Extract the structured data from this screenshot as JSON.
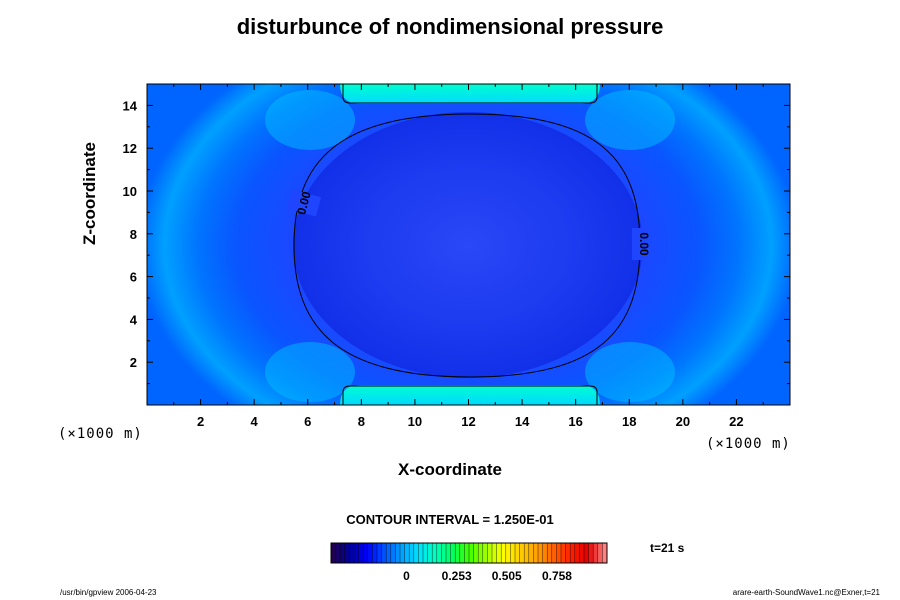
{
  "chart_data": {
    "type": "heatmap",
    "title": "disturbunce of nondimensional pressure",
    "xlabel": "X-coordinate",
    "ylabel": "Z-coordinate",
    "x_unit": "(×1000 m)",
    "z_unit": "(×1000 m)",
    "xlim": [
      0,
      24
    ],
    "ylim": [
      0,
      15
    ],
    "x_ticks": [
      "2",
      "4",
      "6",
      "8",
      "10",
      "12",
      "14",
      "16",
      "18",
      "20",
      "22"
    ],
    "y_ticks": [
      "2",
      "4",
      "6",
      "8",
      "10",
      "12",
      "14"
    ],
    "contour_level": 0.0,
    "contour_labels": [
      "0.00",
      "0.00"
    ],
    "contour_interval": "CONTOUR INTERVAL = 1.250E-01",
    "colorbar_ticks": [
      "0",
      "0.253",
      "0.505",
      "0.758"
    ],
    "colorbar_tick_values": [
      0,
      0.253,
      0.505,
      0.758
    ],
    "colorbar_range": [
      -0.38,
      1.01
    ],
    "time_label": "t=21 s",
    "colormap": [
      "#200050",
      "#0000a0",
      "#0000ff",
      "#0050ff",
      "#00a0ff",
      "#00e0ff",
      "#00ffc0",
      "#00ff60",
      "#40ff00",
      "#a0ff00",
      "#ffff00",
      "#ffd000",
      "#ffa000",
      "#ff6000",
      "#ff2000",
      "#e00000",
      "#ff8080"
    ]
  },
  "footer": {
    "left": "/usr/bin/gpview 2006-04-23",
    "right": "arare-earth-SoundWave1.nc@Exner,t=21"
  }
}
